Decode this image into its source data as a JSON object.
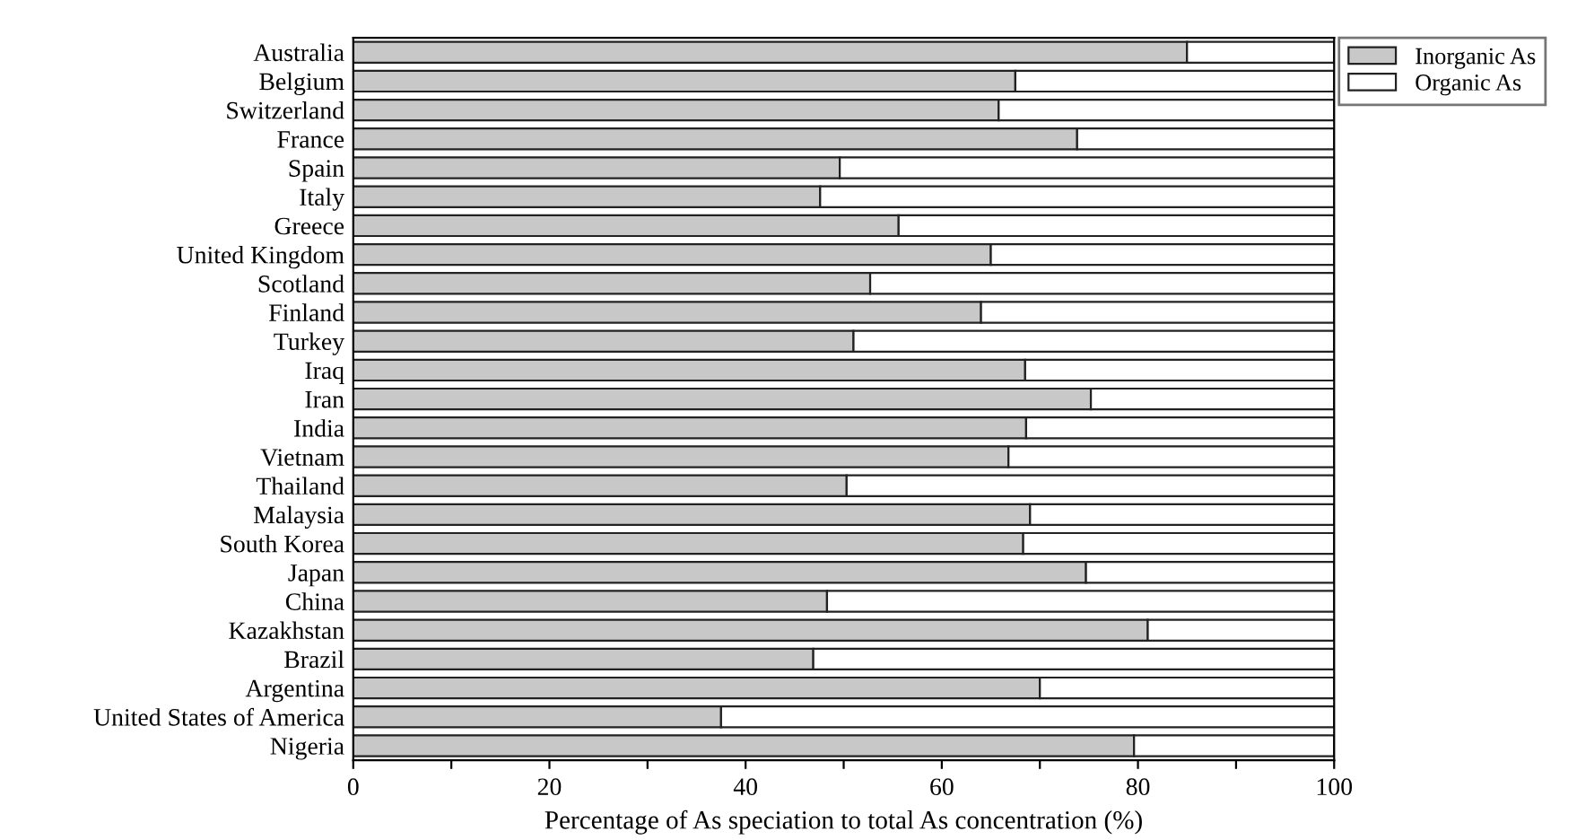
{
  "chart_data": {
    "type": "bar",
    "orientation": "horizontal",
    "stacked": true,
    "xlabel": "Percentage of As speciation to total As concentration (%)",
    "categories": [
      "Australia",
      "Belgium",
      "Switzerland",
      "France",
      "Spain",
      "Italy",
      "Greece",
      "United Kingdom",
      "Scotland",
      "Finland",
      "Turkey",
      "Iraq",
      "Iran",
      "India",
      "Vietnam",
      "Thailand",
      "Malaysia",
      "South Korea",
      "Japan",
      "China",
      "Kazakhstan",
      "Brazil",
      "Argentina",
      "United States of America",
      "Nigeria"
    ],
    "series": [
      {
        "name": "Inorganic As",
        "color": "#c8c8c8",
        "values": [
          85,
          67.5,
          65.8,
          73.8,
          49.6,
          47.6,
          55.6,
          65,
          52.7,
          64,
          51,
          68.5,
          75.2,
          68.6,
          66.8,
          50.3,
          69,
          68.3,
          74.7,
          48.3,
          81,
          46.9,
          70,
          37.5,
          79.6
        ]
      },
      {
        "name": "Organic As",
        "color": "#ffffff",
        "values": [
          15,
          32.5,
          34.2,
          26.2,
          50.4,
          52.4,
          44.4,
          35,
          47.3,
          36,
          49,
          31.5,
          24.8,
          31.4,
          33.2,
          49.7,
          31,
          31.7,
          25.3,
          51.7,
          19,
          53.1,
          30,
          62.5,
          20.4
        ]
      }
    ],
    "xlim": [
      0,
      100
    ],
    "xticks": [
      0,
      {
        "value": 10,
        "label": null
      },
      20,
      {
        "value": 30,
        "label": null
      },
      40,
      {
        "value": 50,
        "label": null
      },
      60,
      {
        "value": 70,
        "label": null
      },
      80,
      {
        "value": 90,
        "label": null
      },
      100
    ],
    "legend": "top right",
    "grid": false
  }
}
